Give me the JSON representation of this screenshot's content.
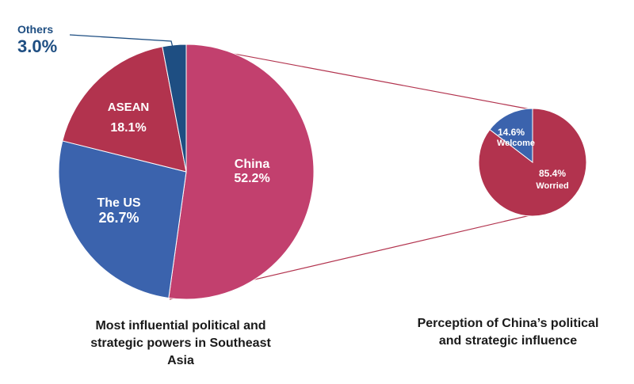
{
  "chart_data": [
    {
      "type": "pie",
      "title": "Most influential political and strategic powers in Southeast Asia",
      "title_lines": [
        "Most influential political and",
        "strategic powers in Southeast",
        "Asia"
      ],
      "slices": [
        {
          "label": "China",
          "value": 52.2,
          "value_text": "52.2%",
          "color": "#c2406e"
        },
        {
          "label": "The US",
          "value": 26.7,
          "value_text": "26.7%",
          "color": "#3b63ad"
        },
        {
          "label": "ASEAN",
          "value": 18.1,
          "value_text": "18.1%",
          "color": "#b2334e"
        },
        {
          "label": "Others",
          "value": 3.0,
          "value_text": "3.0%",
          "color": "#1e4e82"
        }
      ]
    },
    {
      "type": "pie",
      "title": "Perception of China’s political and strategic influence",
      "title_lines": [
        "Perception of China’s political",
        "and strategic influence"
      ],
      "slices": [
        {
          "label": "Worried",
          "value": 85.4,
          "value_text": "85.4%",
          "color": "#b2334e"
        },
        {
          "label": "Welcome",
          "value": 14.6,
          "value_text": "14.6%",
          "color": "#3b63ad"
        }
      ]
    }
  ],
  "colors": {
    "connector": "#b2334e",
    "others_label": "#1e4e82",
    "slice_border": "#ffffff"
  }
}
